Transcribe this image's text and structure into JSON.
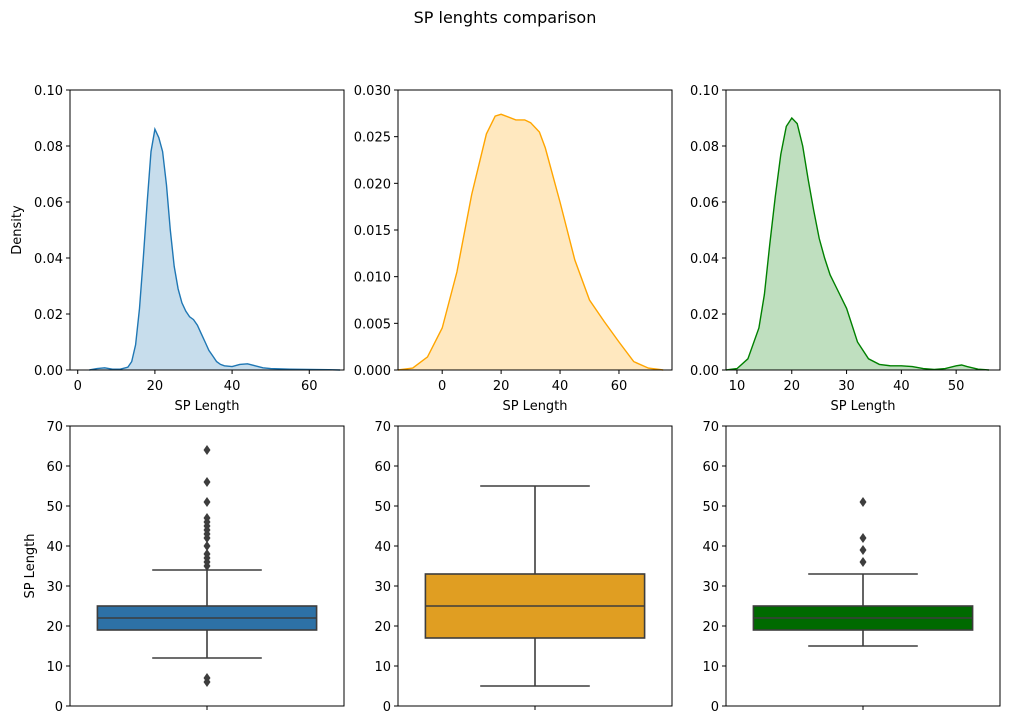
{
  "figure": {
    "title": "SP lenghts comparison"
  },
  "chart_data": [
    {
      "type": "area",
      "color": "#1f77b4",
      "fill_opacity": 0.25,
      "xlabel": "SP Length",
      "ylabel": "Density",
      "xlim": [
        -2,
        69
      ],
      "ylim": [
        0,
        0.1
      ],
      "xticks": [
        0,
        20,
        40,
        60
      ],
      "yticks": [
        0.0,
        0.02,
        0.04,
        0.06,
        0.08,
        0.1
      ],
      "ytick_labels": [
        "0.00",
        "0.02",
        "0.04",
        "0.06",
        "0.08",
        "0.10"
      ],
      "x": [
        3,
        5,
        7,
        9,
        11,
        13,
        14,
        15,
        16,
        17,
        18,
        19,
        20,
        21,
        22,
        23,
        24,
        25,
        26,
        27,
        28,
        29,
        30,
        31,
        32,
        33,
        34,
        35,
        36,
        37,
        38,
        40,
        42,
        44,
        46,
        48,
        50,
        55,
        60,
        65,
        68
      ],
      "y": [
        0.0,
        0.0005,
        0.0008,
        0.0003,
        0.0003,
        0.001,
        0.003,
        0.009,
        0.022,
        0.04,
        0.06,
        0.078,
        0.086,
        0.083,
        0.078,
        0.066,
        0.05,
        0.037,
        0.029,
        0.024,
        0.021,
        0.019,
        0.018,
        0.016,
        0.013,
        0.01,
        0.007,
        0.005,
        0.003,
        0.002,
        0.0015,
        0.0012,
        0.002,
        0.0022,
        0.0015,
        0.0008,
        0.0005,
        0.0003,
        0.0002,
        0.0001,
        0.0
      ]
    },
    {
      "type": "area",
      "color": "#ffa500",
      "fill_opacity": 0.25,
      "xlabel": "SP Length",
      "ylabel": "",
      "xlim": [
        -15,
        78
      ],
      "ylim": [
        0,
        0.03
      ],
      "xticks": [
        0,
        20,
        40,
        60
      ],
      "yticks": [
        0.0,
        0.005,
        0.01,
        0.015,
        0.02,
        0.025,
        0.03
      ],
      "ytick_labels": [
        "0.000",
        "0.005",
        "0.010",
        "0.015",
        "0.020",
        "0.025",
        "0.030"
      ],
      "x": [
        -15,
        -10,
        -5,
        0,
        5,
        10,
        15,
        18,
        20,
        25,
        28,
        30,
        33,
        35,
        40,
        45,
        50,
        55,
        60,
        65,
        70,
        75
      ],
      "y": [
        0.0,
        0.0002,
        0.0014,
        0.0045,
        0.0105,
        0.0188,
        0.0253,
        0.0272,
        0.0274,
        0.0268,
        0.0268,
        0.0265,
        0.0255,
        0.0238,
        0.018,
        0.0118,
        0.0075,
        0.0052,
        0.003,
        0.0009,
        0.0002,
        0.0
      ]
    },
    {
      "type": "area",
      "color": "#008000",
      "fill_opacity": 0.25,
      "xlabel": "SP Length",
      "ylabel": "",
      "xlim": [
        8,
        58
      ],
      "ylim": [
        0,
        0.1
      ],
      "xticks": [
        10,
        20,
        30,
        40,
        50
      ],
      "yticks": [
        0.0,
        0.02,
        0.04,
        0.06,
        0.08,
        0.1
      ],
      "ytick_labels": [
        "0.00",
        "0.02",
        "0.04",
        "0.06",
        "0.08",
        "0.10"
      ],
      "x": [
        8,
        10,
        12,
        14,
        15,
        16,
        17,
        18,
        19,
        20,
        21,
        22,
        23,
        24,
        25,
        26,
        27,
        28,
        30,
        32,
        34,
        36,
        38,
        40,
        42,
        44,
        46,
        48,
        50,
        51,
        52,
        54,
        56
      ],
      "y": [
        0.0,
        0.0005,
        0.004,
        0.015,
        0.027,
        0.045,
        0.062,
        0.077,
        0.087,
        0.09,
        0.088,
        0.08,
        0.068,
        0.057,
        0.047,
        0.04,
        0.034,
        0.03,
        0.022,
        0.01,
        0.004,
        0.002,
        0.0015,
        0.0015,
        0.0012,
        0.0005,
        0.0002,
        0.0005,
        0.0015,
        0.0018,
        0.0012,
        0.0003,
        0.0
      ]
    },
    {
      "type": "box",
      "color": "#2d71a6",
      "ylabel": "SP Length",
      "ylim": [
        0,
        70
      ],
      "yticks": [
        0,
        10,
        20,
        30,
        40,
        50,
        60,
        70
      ],
      "whisker_low": 12,
      "q1": 19,
      "median": 22,
      "q3": 25,
      "whisker_high": 34,
      "outliers": [
        6,
        7,
        35,
        36,
        37,
        38,
        40,
        42,
        43,
        44,
        45,
        46,
        47,
        51,
        56,
        64
      ]
    },
    {
      "type": "box",
      "color": "#e09e22",
      "ylabel": "",
      "ylim": [
        0,
        70
      ],
      "yticks": [
        0,
        10,
        20,
        30,
        40,
        50,
        60,
        70
      ],
      "whisker_low": 5,
      "q1": 17,
      "median": 25,
      "q3": 33,
      "whisker_high": 55,
      "outliers": []
    },
    {
      "type": "box",
      "color": "#006a00",
      "ylabel": "",
      "ylim": [
        0,
        70
      ],
      "yticks": [
        0,
        10,
        20,
        30,
        40,
        50,
        60,
        70
      ],
      "whisker_low": 15,
      "q1": 19,
      "median": 22,
      "q3": 25,
      "whisker_high": 33,
      "outliers": [
        36,
        39,
        42,
        51
      ]
    }
  ]
}
